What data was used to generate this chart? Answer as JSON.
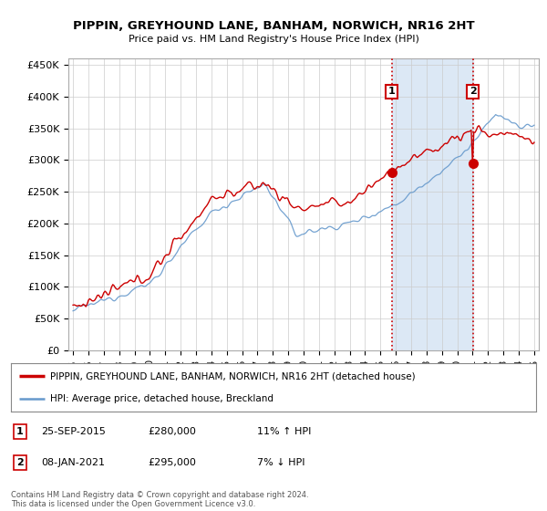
{
  "title": "PIPPIN, GREYHOUND LANE, BANHAM, NORWICH, NR16 2HT",
  "subtitle": "Price paid vs. HM Land Registry's House Price Index (HPI)",
  "ylabel_ticks": [
    "£0",
    "£50K",
    "£100K",
    "£150K",
    "£200K",
    "£250K",
    "£300K",
    "£350K",
    "£400K",
    "£450K"
  ],
  "ytick_vals": [
    0,
    50000,
    100000,
    150000,
    200000,
    250000,
    300000,
    350000,
    400000,
    450000
  ],
  "ylim": [
    0,
    460000
  ],
  "sale1_date": "25-SEP-2015",
  "sale1_price": 280000,
  "sale1_label": "11% ↑ HPI",
  "sale2_date": "08-JAN-2021",
  "sale2_price": 295000,
  "sale2_label": "7% ↓ HPI",
  "legend_line1": "PIPPIN, GREYHOUND LANE, BANHAM, NORWICH, NR16 2HT (detached house)",
  "legend_line2": "HPI: Average price, detached house, Breckland",
  "footer": "Contains HM Land Registry data © Crown copyright and database right 2024.\nThis data is licensed under the Open Government Licence v3.0.",
  "line_color_red": "#cc0000",
  "line_color_blue": "#6699cc",
  "shade_color": "#dce8f5",
  "annotation_box_color": "#cc0000",
  "vline_color": "#cc0000",
  "background_plot": "#ffffff",
  "grid_color": "#cccccc",
  "sale1_x": 2015.73,
  "sale2_x": 2021.02,
  "x_start_year": 1995,
  "x_end_year": 2025
}
